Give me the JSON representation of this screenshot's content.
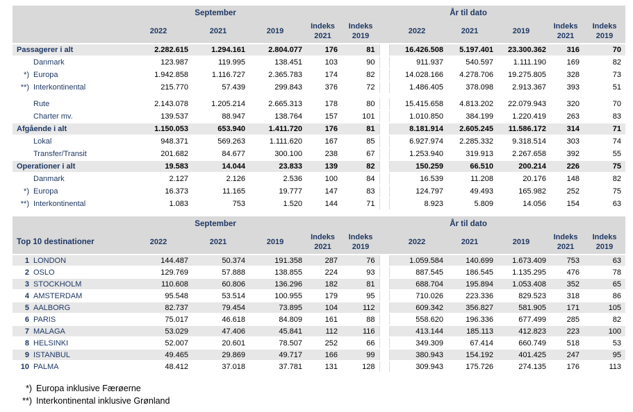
{
  "palette": {
    "header_bg": "#d9d9d9",
    "band_bg": "#e7e7e7",
    "navy": "#1f3864",
    "number_color": "#000000",
    "divider_line": "#d9d9d9"
  },
  "periods": {
    "september": "September",
    "ytd": "År til dato"
  },
  "columns": [
    "2022",
    "2021",
    "2019",
    "Indeks 2021",
    "Indeks 2019"
  ],
  "table1": {
    "rows": [
      {
        "type": "total",
        "prefix": "",
        "label": "Passagerer i alt",
        "gap_before": false,
        "sep": [
          "2.282.615",
          "1.294.161",
          "2.804.077",
          "176",
          "81"
        ],
        "ytd": [
          "16.426.508",
          "5.197.401",
          "23.300.362",
          "316",
          "70"
        ]
      },
      {
        "type": "sub",
        "prefix": "",
        "label": "Danmark",
        "gap_before": false,
        "sep": [
          "123.987",
          "119.995",
          "138.451",
          "103",
          "90"
        ],
        "ytd": [
          "911.937",
          "540.597",
          "1.111.190",
          "169",
          "82"
        ]
      },
      {
        "type": "sub",
        "prefix": "*)",
        "label": "Europa",
        "gap_before": false,
        "sep": [
          "1.942.858",
          "1.116.727",
          "2.365.783",
          "174",
          "82"
        ],
        "ytd": [
          "14.028.166",
          "4.278.706",
          "19.275.805",
          "328",
          "73"
        ]
      },
      {
        "type": "sub",
        "prefix": "**)",
        "label": "Interkontinental",
        "gap_before": false,
        "sep": [
          "215.770",
          "57.439",
          "299.843",
          "376",
          "72"
        ],
        "ytd": [
          "1.486.405",
          "378.098",
          "2.913.367",
          "393",
          "51"
        ]
      },
      {
        "type": "sub",
        "prefix": "",
        "label": "Rute",
        "gap_before": true,
        "sep": [
          "2.143.078",
          "1.205.214",
          "2.665.313",
          "178",
          "80"
        ],
        "ytd": [
          "15.415.658",
          "4.813.202",
          "22.079.943",
          "320",
          "70"
        ]
      },
      {
        "type": "sub",
        "prefix": "",
        "label": "Charter mv.",
        "gap_before": false,
        "sep": [
          "139.537",
          "88.947",
          "138.764",
          "157",
          "101"
        ],
        "ytd": [
          "1.010.850",
          "384.199",
          "1.220.419",
          "263",
          "83"
        ]
      },
      {
        "type": "total",
        "prefix": "",
        "label": "Afgående i alt",
        "gap_before": false,
        "sep": [
          "1.150.053",
          "653.940",
          "1.411.720",
          "176",
          "81"
        ],
        "ytd": [
          "8.181.914",
          "2.605.245",
          "11.586.172",
          "314",
          "71"
        ]
      },
      {
        "type": "sub",
        "prefix": "",
        "label": "Lokal",
        "gap_before": false,
        "sep": [
          "948.371",
          "569.263",
          "1.111.620",
          "167",
          "85"
        ],
        "ytd": [
          "6.927.974",
          "2.285.332",
          "9.318.514",
          "303",
          "74"
        ]
      },
      {
        "type": "sub",
        "prefix": "",
        "label": "Transfer/Transit",
        "gap_before": false,
        "sep": [
          "201.682",
          "84.677",
          "300.100",
          "238",
          "67"
        ],
        "ytd": [
          "1.253.940",
          "319.913",
          "2.267.658",
          "392",
          "55"
        ]
      },
      {
        "type": "total",
        "prefix": "",
        "label": "Operationer i alt",
        "gap_before": false,
        "sep": [
          "19.583",
          "14.044",
          "23.833",
          "139",
          "82"
        ],
        "ytd": [
          "150.259",
          "66.510",
          "200.214",
          "226",
          "75"
        ]
      },
      {
        "type": "sub",
        "prefix": "",
        "label": "Danmark",
        "gap_before": false,
        "sep": [
          "2.127",
          "2.126",
          "2.536",
          "100",
          "84"
        ],
        "ytd": [
          "16.539",
          "11.208",
          "20.176",
          "148",
          "82"
        ]
      },
      {
        "type": "sub",
        "prefix": "*)",
        "label": "Europa",
        "gap_before": false,
        "sep": [
          "16.373",
          "11.165",
          "19.777",
          "147",
          "83"
        ],
        "ytd": [
          "124.797",
          "49.493",
          "165.982",
          "252",
          "75"
        ]
      },
      {
        "type": "sub",
        "prefix": "**)",
        "label": "Interkontinental",
        "gap_before": false,
        "sep": [
          "1.083",
          "753",
          "1.520",
          "144",
          "71"
        ],
        "ytd": [
          "8.923",
          "5.809",
          "14.056",
          "154",
          "63"
        ]
      }
    ]
  },
  "table2": {
    "title": "Top 10 destinationer",
    "rows": [
      {
        "rank": "1",
        "label": "LONDON",
        "sep": [
          "144.487",
          "50.374",
          "191.358",
          "287",
          "76"
        ],
        "ytd": [
          "1.059.584",
          "140.699",
          "1.673.409",
          "753",
          "63"
        ]
      },
      {
        "rank": "2",
        "label": "OSLO",
        "sep": [
          "129.769",
          "57.888",
          "138.855",
          "224",
          "93"
        ],
        "ytd": [
          "887.545",
          "186.545",
          "1.135.295",
          "476",
          "78"
        ]
      },
      {
        "rank": "3",
        "label": "STOCKHOLM",
        "sep": [
          "110.608",
          "60.806",
          "136.296",
          "182",
          "81"
        ],
        "ytd": [
          "688.704",
          "195.894",
          "1.053.408",
          "352",
          "65"
        ]
      },
      {
        "rank": "4",
        "label": "AMSTERDAM",
        "sep": [
          "95.548",
          "53.514",
          "100.955",
          "179",
          "95"
        ],
        "ytd": [
          "710.026",
          "223.336",
          "829.523",
          "318",
          "86"
        ]
      },
      {
        "rank": "5",
        "label": "AALBORG",
        "sep": [
          "82.737",
          "79.454",
          "73.895",
          "104",
          "112"
        ],
        "ytd": [
          "609.342",
          "356.827",
          "581.905",
          "171",
          "105"
        ]
      },
      {
        "rank": "6",
        "label": "PARIS",
        "sep": [
          "75.017",
          "46.618",
          "84.809",
          "161",
          "88"
        ],
        "ytd": [
          "558.620",
          "196.336",
          "677.499",
          "285",
          "82"
        ]
      },
      {
        "rank": "7",
        "label": "MALAGA",
        "sep": [
          "53.029",
          "47.406",
          "45.841",
          "112",
          "116"
        ],
        "ytd": [
          "413.144",
          "185.113",
          "412.823",
          "223",
          "100"
        ]
      },
      {
        "rank": "8",
        "label": "HELSINKI",
        "sep": [
          "52.007",
          "20.601",
          "78.507",
          "252",
          "66"
        ],
        "ytd": [
          "349.309",
          "67.414",
          "660.749",
          "518",
          "53"
        ]
      },
      {
        "rank": "9",
        "label": "ISTANBUL",
        "sep": [
          "49.465",
          "29.869",
          "49.717",
          "166",
          "99"
        ],
        "ytd": [
          "380.943",
          "154.192",
          "401.425",
          "247",
          "95"
        ]
      },
      {
        "rank": "10",
        "label": "PALMA",
        "sep": [
          "48.412",
          "37.018",
          "37.781",
          "131",
          "128"
        ],
        "ytd": [
          "309.943",
          "175.726",
          "274.135",
          "176",
          "113"
        ]
      }
    ]
  },
  "footnotes": [
    {
      "prefix": "*)",
      "text": "Europa inklusive Færøerne"
    },
    {
      "prefix": "**)",
      "text": "Interkontinental inklusive Grønland"
    }
  ]
}
